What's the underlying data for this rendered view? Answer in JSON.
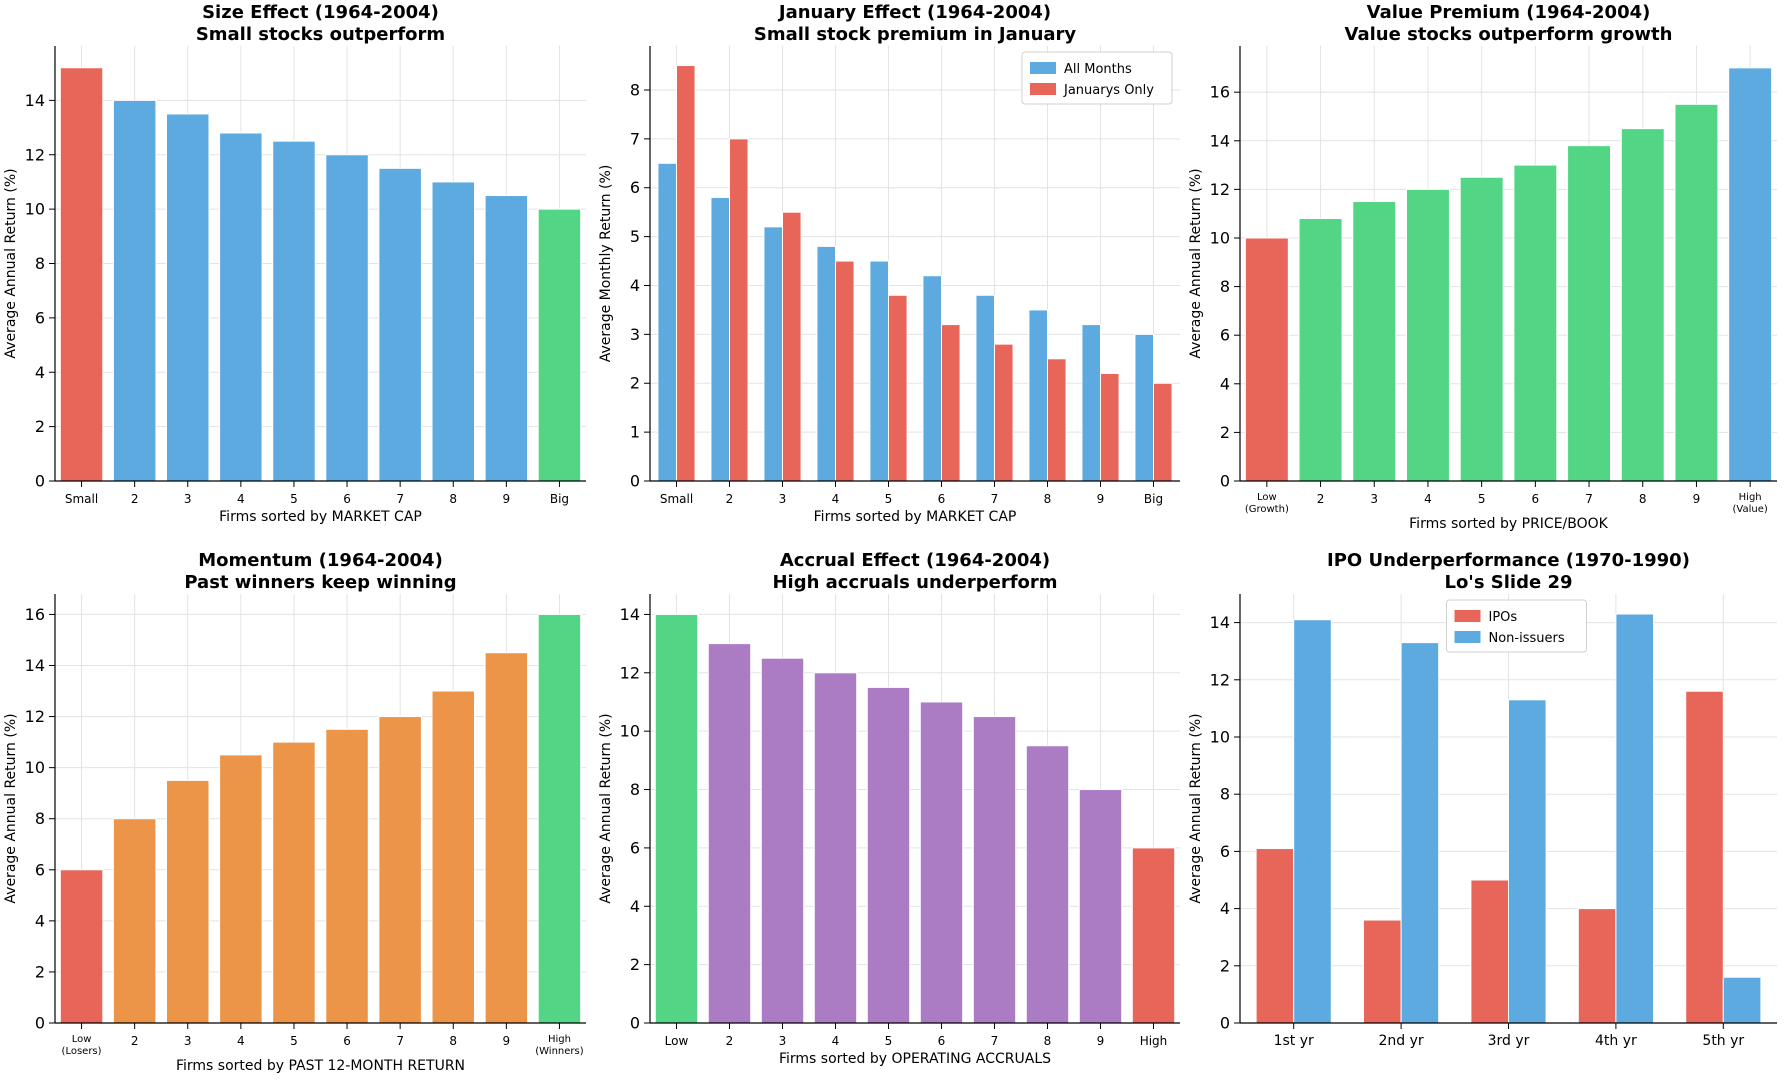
{
  "colors": {
    "red": "#e8655a",
    "blue": "#5daae0",
    "green": "#52d585",
    "orange": "#ec9548",
    "purple": "#ab7bc4",
    "grid": "#e3e3e3"
  },
  "chart_data": [
    {
      "type": "bar",
      "title": "Size Effect (1964-2004)",
      "subtitle": "Small stocks outperform",
      "xlabel": "Firms sorted by MARKET CAP",
      "ylabel": "Average Annual Return (%)",
      "ylim": [
        0,
        16
      ],
      "yticks": [
        0,
        2,
        4,
        6,
        8,
        10,
        12,
        14
      ],
      "categories": [
        "Small",
        "2",
        "3",
        "4",
        "5",
        "6",
        "7",
        "8",
        "9",
        "Big"
      ],
      "values": [
        15.2,
        14.0,
        13.5,
        12.8,
        12.5,
        12.0,
        11.5,
        11.0,
        10.5,
        10.0
      ],
      "bar_colors": [
        "red",
        "blue",
        "blue",
        "blue",
        "blue",
        "blue",
        "blue",
        "blue",
        "blue",
        "green"
      ],
      "grid": true
    },
    {
      "type": "bar",
      "title": "January Effect (1964-2004)",
      "subtitle": "Small stock premium in January",
      "xlabel": "Firms sorted by MARKET CAP",
      "ylabel": "Average Monthly Return (%)",
      "ylim": [
        0,
        8.9
      ],
      "yticks": [
        0,
        1,
        2,
        3,
        4,
        5,
        6,
        7,
        8
      ],
      "categories": [
        "Small",
        "2",
        "3",
        "4",
        "5",
        "6",
        "7",
        "8",
        "9",
        "Big"
      ],
      "series": [
        {
          "name": "All Months",
          "color": "blue",
          "values": [
            6.5,
            5.8,
            5.2,
            4.8,
            4.5,
            4.2,
            3.8,
            3.5,
            3.2,
            3.0
          ]
        },
        {
          "name": "Januarys Only",
          "color": "red",
          "values": [
            8.5,
            7.0,
            5.5,
            4.5,
            3.8,
            3.2,
            2.8,
            2.5,
            2.2,
            2.0
          ]
        }
      ],
      "legend_position": "top-right",
      "grid": true
    },
    {
      "type": "bar",
      "title": "Value Premium (1964-2004)",
      "subtitle": "Value stocks outperform growth",
      "xlabel": "Firms sorted by PRICE/BOOK",
      "ylabel": "Average Annual Return (%)",
      "ylim": [
        0,
        17.9
      ],
      "yticks": [
        0,
        2,
        4,
        6,
        8,
        10,
        12,
        14,
        16
      ],
      "categories": [
        "Low\n(Growth)",
        "2",
        "3",
        "4",
        "5",
        "6",
        "7",
        "8",
        "9",
        "High\n(Value)"
      ],
      "values": [
        10.0,
        10.8,
        11.5,
        12.0,
        12.5,
        13.0,
        13.8,
        14.5,
        15.5,
        17.0
      ],
      "bar_colors": [
        "red",
        "green",
        "green",
        "green",
        "green",
        "green",
        "green",
        "green",
        "green",
        "blue"
      ],
      "grid": true
    },
    {
      "type": "bar",
      "title": "Momentum (1964-2004)",
      "subtitle": "Past winners keep winning",
      "xlabel": "Firms sorted by PAST 12-MONTH RETURN",
      "ylabel": "Average Annual Return (%)",
      "ylim": [
        0,
        16.8
      ],
      "yticks": [
        0,
        2,
        4,
        6,
        8,
        10,
        12,
        14,
        16
      ],
      "categories": [
        "Low\n(Losers)",
        "2",
        "3",
        "4",
        "5",
        "6",
        "7",
        "8",
        "9",
        "High\n(Winners)"
      ],
      "values": [
        6.0,
        8.0,
        9.5,
        10.5,
        11.0,
        11.5,
        12.0,
        13.0,
        14.5,
        16.0
      ],
      "bar_colors": [
        "red",
        "orange",
        "orange",
        "orange",
        "orange",
        "orange",
        "orange",
        "orange",
        "orange",
        "green"
      ],
      "grid": true
    },
    {
      "type": "bar",
      "title": "Accrual Effect (1964-2004)",
      "subtitle": "High accruals underperform",
      "xlabel": "Firms sorted by OPERATING ACCRUALS",
      "ylabel": "Average Annual Return (%)",
      "ylim": [
        0,
        14.7
      ],
      "yticks": [
        0,
        2,
        4,
        6,
        8,
        10,
        12,
        14
      ],
      "categories": [
        "Low",
        "2",
        "3",
        "4",
        "5",
        "6",
        "7",
        "8",
        "9",
        "High"
      ],
      "values": [
        14.0,
        13.0,
        12.5,
        12.0,
        11.5,
        11.0,
        10.5,
        9.5,
        8.0,
        6.0
      ],
      "bar_colors": [
        "green",
        "purple",
        "purple",
        "purple",
        "purple",
        "purple",
        "purple",
        "purple",
        "purple",
        "red"
      ],
      "grid": true
    },
    {
      "type": "bar",
      "title": "IPO Underperformance (1970-1990)",
      "subtitle": "Lo's Slide 29",
      "xlabel": "",
      "ylabel": "Average Annual Return (%)",
      "ylim": [
        0,
        15
      ],
      "yticks": [
        0,
        2,
        4,
        6,
        8,
        10,
        12,
        14
      ],
      "categories": [
        "1st yr",
        "2nd yr",
        "3rd yr",
        "4th yr",
        "5th yr"
      ],
      "series": [
        {
          "name": "IPOs",
          "color": "red",
          "values": [
            6.1,
            3.6,
            5.0,
            4.0,
            11.6
          ]
        },
        {
          "name": "Non-issuers",
          "color": "blue",
          "values": [
            14.1,
            13.3,
            11.3,
            14.3,
            1.6
          ]
        }
      ],
      "legend_position": "top-center",
      "grid": true
    }
  ]
}
